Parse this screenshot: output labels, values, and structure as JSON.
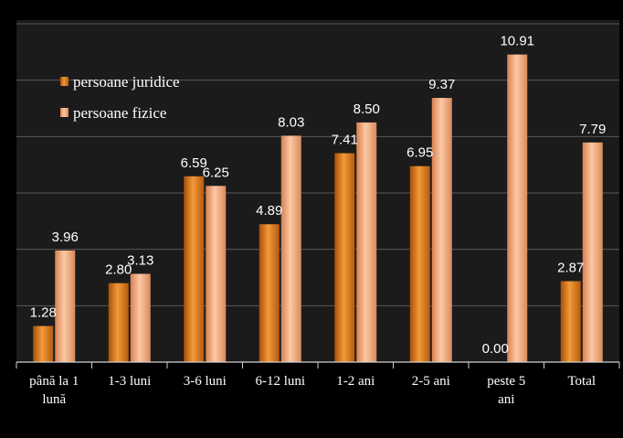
{
  "chart_data": {
    "type": "bar",
    "categories": [
      [
        "până la 1",
        "lună"
      ],
      [
        "1-3 luni"
      ],
      [
        "3-6 luni"
      ],
      [
        "6-12 luni"
      ],
      [
        "1-2 ani"
      ],
      [
        "2-5 ani"
      ],
      [
        "peste 5",
        "ani"
      ],
      [
        "Total"
      ]
    ],
    "series": [
      {
        "name": "persoane juridice",
        "values": [
          1.28,
          2.8,
          6.59,
          4.89,
          7.41,
          6.95,
          0.0,
          2.87
        ],
        "labels": [
          "1.28",
          "2.80",
          "6.59",
          "4.89",
          "7.41",
          "6.95",
          "0.00",
          "2.87"
        ]
      },
      {
        "name": "persoane fizice",
        "values": [
          3.96,
          3.13,
          6.25,
          8.03,
          8.5,
          9.37,
          10.91,
          7.79
        ],
        "labels": [
          "3.96",
          "3.13",
          "6.25",
          "8.03",
          "8.50",
          "9.37",
          "10.91",
          "7.79"
        ]
      }
    ],
    "ylim": [
      0,
      12
    ],
    "grid": true,
    "legend_position": "top-left",
    "colors": {
      "background_outer": "#000000",
      "plot_area": "#1b1b1b",
      "gridline": "#5a5a5a",
      "axis": "#cfcfcf",
      "text": "#ffffff",
      "series_1": "#e07a1a",
      "series_2": "#f0a070"
    }
  }
}
